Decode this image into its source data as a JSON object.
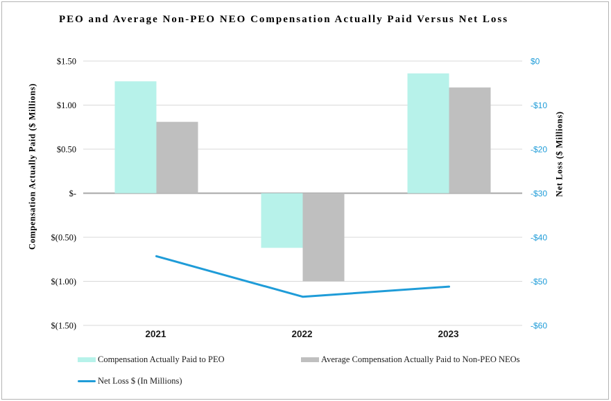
{
  "chart_data": {
    "type": "bar+line",
    "title": "PEO and Average Non-PEO NEO Compensation Actually Paid Versus Net Loss",
    "categories": [
      "2021",
      "2022",
      "2023"
    ],
    "series": [
      {
        "name": "Compensation Actually Paid to PEO",
        "type": "bar",
        "axis": "left",
        "color": "#B7F2EA",
        "values": [
          1.27,
          -0.62,
          1.36
        ]
      },
      {
        "name": "Average Compensation Actually Paid to Non-PEO NEOs",
        "type": "bar",
        "axis": "left",
        "color": "#BFBFBF",
        "values": [
          0.81,
          -1.0,
          1.2
        ]
      },
      {
        "name": "Net Loss $ (In Millions)",
        "type": "line",
        "axis": "right",
        "color": "#1F9CD8",
        "values": [
          -44.3,
          -53.5,
          -51.2
        ]
      }
    ],
    "left_axis": {
      "label": "Compensation Actually Paid ($ Millions)",
      "min": -1.5,
      "max": 1.5,
      "ticks": [
        {
          "label": "$1.50",
          "value": 1.5
        },
        {
          "label": "$1.00",
          "value": 1.0
        },
        {
          "label": "$0.50",
          "value": 0.5
        },
        {
          "label": "$-",
          "value": 0
        },
        {
          "label": "$(0.50)",
          "value": -0.5
        },
        {
          "label": "$(1.00)",
          "value": -1.0
        },
        {
          "label": "$(1.50)",
          "value": -1.5
        }
      ]
    },
    "right_axis": {
      "label": "Net Loss ($ Millions)",
      "min": -60,
      "max": 0,
      "tick_color": "#1F9CD8",
      "ticks": [
        {
          "label": "$0",
          "value": 0
        },
        {
          "label": "-$10",
          "value": -10
        },
        {
          "label": "-$20",
          "value": -20
        },
        {
          "label": "-$30",
          "value": -30
        },
        {
          "label": "-$40",
          "value": -40
        },
        {
          "label": "-$50",
          "value": -50
        },
        {
          "label": "-$60",
          "value": -60
        }
      ]
    },
    "grid": true,
    "legend_position": "bottom-left",
    "gridline_color": "#D9D9D9",
    "zero_line_color": "#A6A6A6"
  }
}
